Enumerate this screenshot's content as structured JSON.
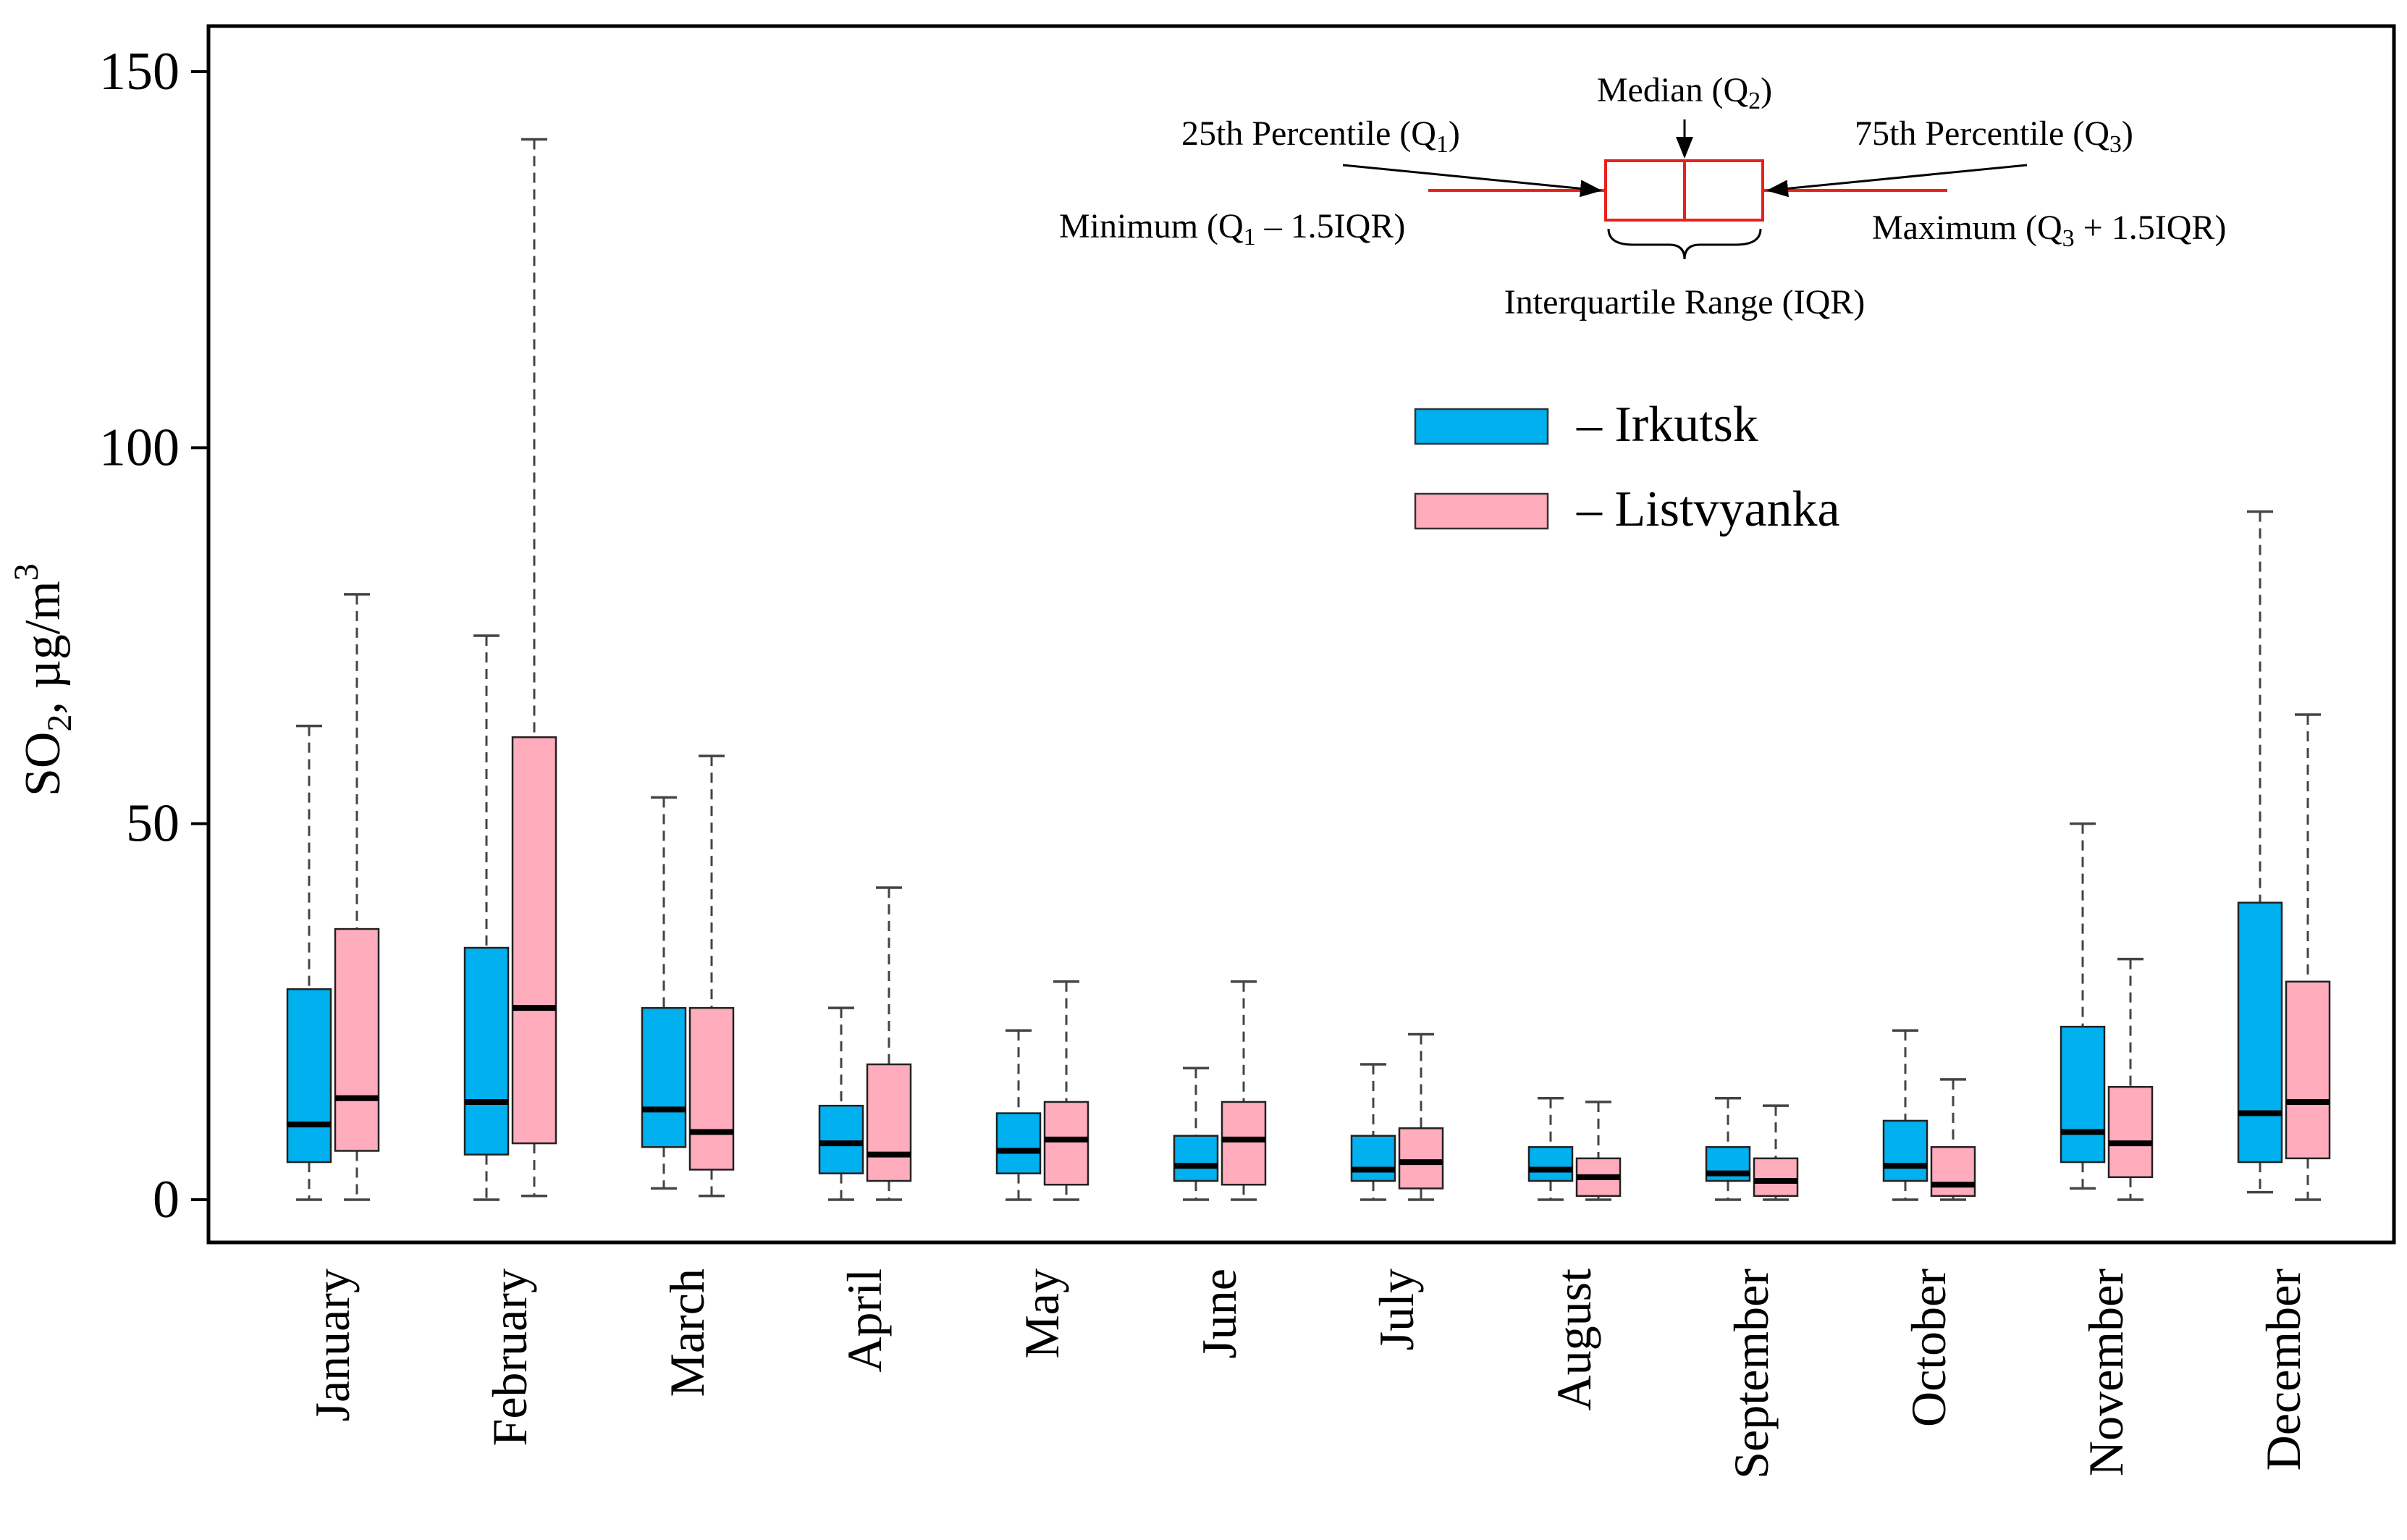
{
  "chart_data": {
    "type": "boxplot",
    "title": "",
    "ylabel": "SO2, µg/m3",
    "ylabel_parts": {
      "base": "SO",
      "sub": "2",
      "unit": ", µg/m",
      "sup": "3"
    },
    "xlabel": "",
    "ylim": [
      -6,
      155
    ],
    "yticks": [
      0,
      50,
      100,
      150
    ],
    "categories": [
      "January",
      "February",
      "March",
      "April",
      "May",
      "June",
      "July",
      "August",
      "September",
      "October",
      "November",
      "December"
    ],
    "series": [
      {
        "name": "Irkutsk",
        "legend_label": "– Irkutsk",
        "color": "#00b0ef",
        "boxes": [
          {
            "min": 0,
            "q1": 5,
            "median": 10,
            "q3": 28,
            "max": 63
          },
          {
            "min": 0,
            "q1": 6,
            "median": 13,
            "q3": 33.5,
            "max": 75
          },
          {
            "min": 1.5,
            "q1": 7,
            "median": 12,
            "q3": 25.5,
            "max": 53.5
          },
          {
            "min": 0,
            "q1": 3.5,
            "median": 7.5,
            "q3": 12.5,
            "max": 25.5
          },
          {
            "min": 0,
            "q1": 3.5,
            "median": 6.5,
            "q3": 11.5,
            "max": 22.5
          },
          {
            "min": 0,
            "q1": 2.5,
            "median": 4.5,
            "q3": 8.5,
            "max": 17.5
          },
          {
            "min": 0,
            "q1": 2.5,
            "median": 4,
            "q3": 8.5,
            "max": 18
          },
          {
            "min": 0,
            "q1": 2.5,
            "median": 4,
            "q3": 7,
            "max": 13.5
          },
          {
            "min": 0,
            "q1": 2.5,
            "median": 3.5,
            "q3": 7,
            "max": 13.5
          },
          {
            "min": 0,
            "q1": 2.5,
            "median": 4.5,
            "q3": 10.5,
            "max": 22.5
          },
          {
            "min": 1.5,
            "q1": 5,
            "median": 9,
            "q3": 23,
            "max": 50
          },
          {
            "min": 1,
            "q1": 5,
            "median": 11.5,
            "q3": 39.5,
            "max": 91.5
          }
        ]
      },
      {
        "name": "Listvyanka",
        "legend_label": "– Listvyanka",
        "color": "#ffacbc",
        "boxes": [
          {
            "min": 0,
            "q1": 6.5,
            "median": 13.5,
            "q3": 36,
            "max": 80.5
          },
          {
            "min": 0.5,
            "q1": 7.5,
            "median": 25.5,
            "q3": 61.5,
            "max": 141
          },
          {
            "min": 0.5,
            "q1": 4,
            "median": 9,
            "q3": 25.5,
            "max": 59
          },
          {
            "min": 0,
            "q1": 2.5,
            "median": 6,
            "q3": 18,
            "max": 41.5
          },
          {
            "min": 0,
            "q1": 2,
            "median": 8,
            "q3": 13,
            "max": 29
          },
          {
            "min": 0,
            "q1": 2,
            "median": 8,
            "q3": 13,
            "max": 29
          },
          {
            "min": 0,
            "q1": 1.5,
            "median": 5,
            "q3": 9.5,
            "max": 22
          },
          {
            "min": 0,
            "q1": 0.5,
            "median": 3,
            "q3": 5.5,
            "max": 13
          },
          {
            "min": 0,
            "q1": 0.5,
            "median": 2.5,
            "q3": 5.5,
            "max": 12.5
          },
          {
            "min": 0,
            "q1": 0.5,
            "median": 2,
            "q3": 7,
            "max": 16
          },
          {
            "min": 0,
            "q1": 3,
            "median": 7.5,
            "q3": 15,
            "max": 32
          },
          {
            "min": 0,
            "q1": 5.5,
            "median": 13,
            "q3": 29,
            "max": 64.5
          }
        ]
      }
    ],
    "legend": {
      "placement": "upper-right",
      "entries": [
        "– Irkutsk",
        "– Listvyanka"
      ]
    },
    "annotation_key": {
      "median": "Median (Q2)",
      "q1": "25th Percentile (Q1)",
      "q3": "75th Percentile (Q3)",
      "minimum": "Minimum (Q1 – 1.5IQR)",
      "maximum": "Maximum (Q3 + 1.5IQR)",
      "iqr": "Interquartile Range (IQR)",
      "parts": {
        "median": {
          "pre": "Median (Q",
          "sub": "2",
          "post": ")"
        },
        "q1": {
          "pre": "25th Percentile (Q",
          "sub": "1",
          "post": ")"
        },
        "q3": {
          "pre": "75th Percentile (Q",
          "sub": "3",
          "post": ")"
        },
        "minimum": {
          "pre": "Minimum (Q",
          "sub": "1",
          "post": " – 1.5IQR)"
        },
        "maximum": {
          "pre": "Maximum (Q",
          "sub": "3",
          "post": " + 1.5IQR)"
        }
      },
      "color": "#e8211c"
    },
    "colors": {
      "axis": "#000000",
      "median_line": "#000000",
      "whisker": "#444444"
    }
  }
}
